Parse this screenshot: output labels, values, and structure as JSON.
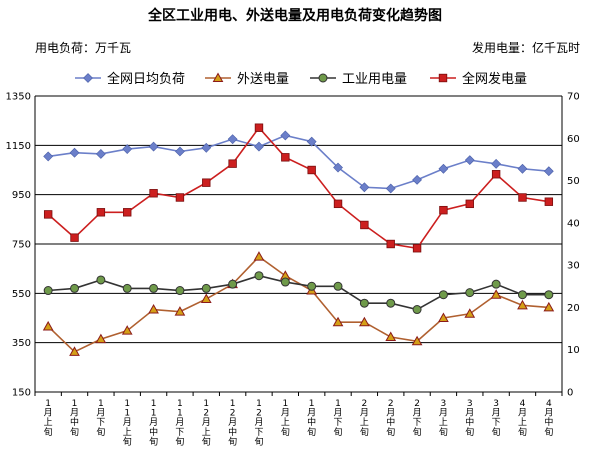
{
  "chart_data": {
    "type": "line",
    "title": "全区工业用电、外送电量及用电负荷变化趋势图",
    "left_unit": "用电负荷：万千瓦",
    "right_unit": "发用电量：亿千瓦时",
    "left_axis": {
      "min": 150,
      "max": 1350,
      "ticks": [
        150,
        350,
        550,
        750,
        950,
        1150,
        1350
      ]
    },
    "right_axis": {
      "min": 0,
      "max": 70,
      "ticks": [
        0,
        10,
        20,
        30,
        40,
        50,
        60,
        70
      ]
    },
    "grid": true,
    "legend_position": "top",
    "categories": [
      "1月上旬",
      "1月中旬",
      "1月下旬",
      "11月上旬",
      "11月中旬",
      "11月下旬",
      "12月上旬",
      "12月中旬",
      "12月下旬",
      "1月上旬",
      "1月中旬",
      "1月下旬",
      "2月上旬",
      "2月中旬",
      "2月下旬",
      "3月上旬",
      "3月中旬",
      "3月下旬",
      "4月上旬",
      "4月中旬"
    ],
    "series": [
      {
        "name": "全网日均负荷",
        "axis": "left",
        "color": "#6b7fc9",
        "marker": "diamond",
        "values": [
          1105,
          1120,
          1115,
          1135,
          1145,
          1125,
          1140,
          1175,
          1145,
          1190,
          1165,
          1060,
          980,
          975,
          1010,
          1055,
          1090,
          1075,
          1055,
          1045
        ]
      },
      {
        "name": "外送电量",
        "axis": "right",
        "color": "#8b1a1a",
        "marker": "triangle",
        "values": [
          15.5,
          9.5,
          12.5,
          14.5,
          19.5,
          19,
          22,
          25.5,
          32,
          27.5,
          24,
          16.5,
          16.5,
          13,
          12,
          17.5,
          18.5,
          23,
          20.5,
          20
        ]
      },
      {
        "name": "工业用电量",
        "axis": "right",
        "color": "#333333",
        "marker": "circle",
        "values": [
          24,
          24.5,
          26.5,
          24.5,
          24.5,
          24,
          24.5,
          25.5,
          27.5,
          26,
          25,
          25,
          21,
          21,
          19.5,
          23,
          23.5,
          25.5,
          23,
          23
        ]
      },
      {
        "name": "全网发电量",
        "axis": "right",
        "color": "#cc1f1f",
        "marker": "square",
        "values": [
          42,
          36.5,
          42.5,
          42.5,
          47,
          46,
          49.5,
          54,
          62.5,
          55.5,
          52.5,
          44.5,
          39.5,
          35,
          34,
          43,
          44.5,
          51.5,
          46,
          45
        ]
      }
    ]
  }
}
